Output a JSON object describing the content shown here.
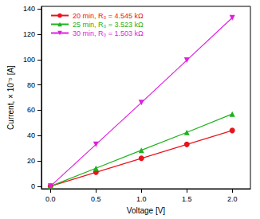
{
  "chart_data": {
    "type": "line",
    "x_label": "Voltage [V]",
    "y_label": "Current, × 10⁻⁵ [A]",
    "x": [
      0,
      0.5,
      1,
      1.5,
      2
    ],
    "series": [
      {
        "name": "20 min, R₀ = 4.545 kΩ",
        "color": "#e8141c",
        "marker": "circle",
        "values": [
          0,
          11,
          22,
          33,
          44
        ]
      },
      {
        "name": "25 min, R₀ = 3.523 kΩ",
        "color": "#1cb21c",
        "marker": "triangle",
        "values": [
          0,
          14.2,
          28.4,
          42.5,
          57
        ]
      },
      {
        "name": "30 min, R₀ = 1.503 kΩ",
        "color": "#e01ee0",
        "marker": "inverted_triangle",
        "values": [
          0,
          33,
          66,
          99.5,
          133
        ]
      }
    ],
    "xlim": [
      -0.1,
      2.2
    ],
    "xticks": [
      {
        "value": 0,
        "label": "0.0"
      },
      0.5,
      {
        "value": 1,
        "label": "1.0"
      },
      1.5,
      {
        "value": 2,
        "label": "2.0"
      }
    ],
    "ylim": [
      -2,
      142
    ],
    "yticks": [
      0,
      20,
      40,
      60,
      80,
      100,
      120,
      140
    ],
    "grid": false,
    "legend": "upper left"
  }
}
